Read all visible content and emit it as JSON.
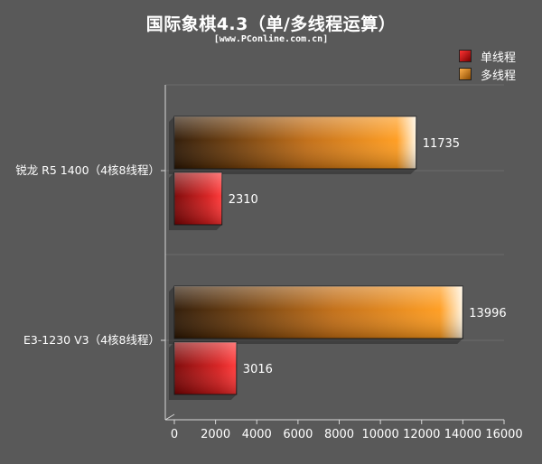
{
  "title": "国际象棋4.3（单/多线程运算）",
  "subtitle": "[www.PConline.com.cn]",
  "colors": {
    "background": "#595959",
    "single_thread_start": "#7a0000",
    "single_thread_end": "#ff3333",
    "multi_thread_start": "#2a1400",
    "multi_thread_end": "#ff9a1a",
    "gridline": "#6a6a6a",
    "axis": "#d8d8d8",
    "text": "#ffffff"
  },
  "chart_data": {
    "type": "bar",
    "orientation": "horizontal",
    "title": "国际象棋4.3（单/多线程运算）",
    "subtitle": "[www.PConline.com.cn]",
    "categories": [
      "锐龙 R5 1400（4核8线程）",
      "E3-1230 V3（4核8线程）"
    ],
    "series": [
      {
        "name": "单线程",
        "values": [
          2310,
          3016
        ]
      },
      {
        "name": "多线程",
        "values": [
          11735,
          13996
        ]
      }
    ],
    "xlim": [
      0,
      16000
    ],
    "xticks": [
      0,
      2000,
      4000,
      6000,
      8000,
      10000,
      12000,
      14000,
      16000
    ],
    "grid": true,
    "legend": "top-right",
    "data_labels": true
  }
}
